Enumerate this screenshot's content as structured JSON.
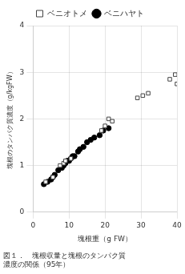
{
  "chart_data": {
    "type": "scatter",
    "xlabel": "塊根重（g FW）",
    "ylabel": "塊根のタンパク質濃度（g/kgFW）",
    "annotations": [
      "図１．　塊根収量と塊根のタンパク質",
      "濃度の関係（95年）"
    ],
    "series": [
      {
        "name": "ベニオトメ",
        "color": "white",
        "marker": "square",
        "x": [
          3.5,
          5.5,
          7.5,
          8.5,
          9.0,
          10.5,
          19.0,
          20.0,
          21.0,
          22.0,
          29.0,
          30.5,
          32.0,
          38.0,
          39.5,
          40.0
        ],
        "values": [
          0.65,
          0.75,
          1.0,
          1.05,
          1.1,
          1.15,
          1.75,
          1.85,
          2.0,
          1.95,
          2.45,
          2.5,
          2.55,
          2.85,
          2.95,
          2.75
        ]
      },
      {
        "name": "ベニハヤト",
        "color": "black",
        "marker": "circle",
        "x": [
          3.0,
          4.0,
          5.0,
          5.5,
          6.0,
          7.0,
          8.0,
          8.5,
          9.0,
          9.5,
          10.0,
          10.5,
          11.0,
          11.5,
          12.5,
          13.0,
          14.0,
          15.0,
          16.0,
          17.0,
          18.5,
          19.5,
          21.0
        ],
        "values": [
          0.6,
          0.65,
          0.7,
          0.75,
          0.8,
          0.9,
          0.95,
          1.0,
          1.05,
          1.1,
          1.1,
          1.15,
          1.2,
          1.2,
          1.3,
          1.35,
          1.4,
          1.5,
          1.55,
          1.6,
          1.65,
          1.75,
          1.8
        ]
      }
    ],
    "xlim": [
      0,
      40
    ],
    "ylim": [
      0,
      4
    ],
    "xticks": [
      0,
      10,
      20,
      30,
      40
    ],
    "yticks": [
      0,
      1,
      2,
      3,
      4
    ],
    "grid": true,
    "legend": "top"
  }
}
